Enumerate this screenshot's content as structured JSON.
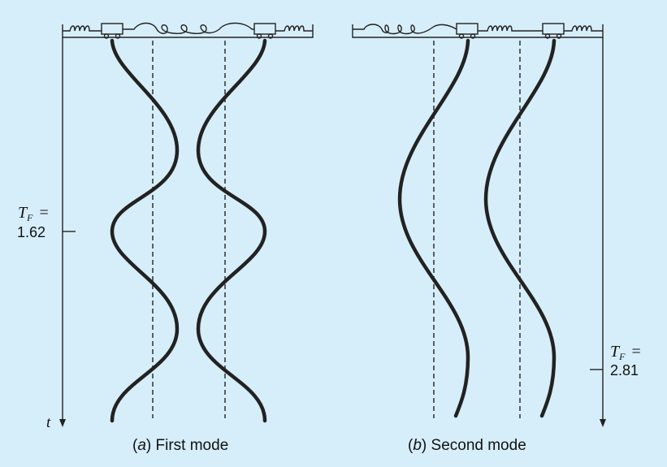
{
  "panels": [
    {
      "caption_letter": "a",
      "caption_text": "First mode",
      "period_symbol": "T",
      "period_subscript": "F",
      "period_value": "1.62"
    },
    {
      "caption_letter": "b",
      "caption_text": "Second mode",
      "period_symbol": "T",
      "period_subscript": "F",
      "period_value": "2.81"
    }
  ],
  "axis_label": "t",
  "colors": {
    "background": "#d6eefa",
    "ink": "#222222"
  }
}
